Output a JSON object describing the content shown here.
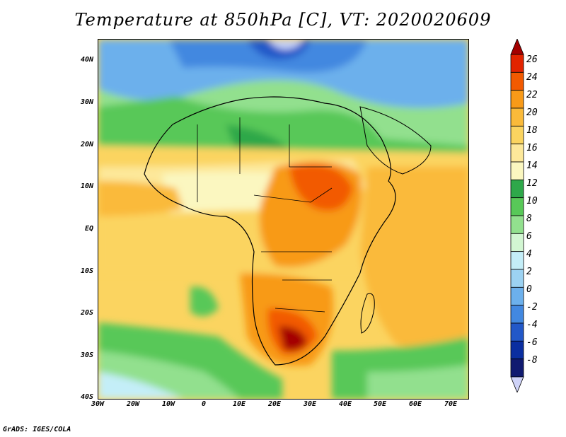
{
  "title": "Temperature at 850hPa [C], VT: 2020020609",
  "footer": "GrADS: IGES/COLA",
  "map": {
    "region": "Africa",
    "lat_labels": [
      "40N",
      "30N",
      "20N",
      "10N",
      "EQ",
      "10S",
      "20S",
      "30S",
      "40S"
    ],
    "lon_labels": [
      "30W",
      "20W",
      "10W",
      "0",
      "10E",
      "20E",
      "30E",
      "40E",
      "50E",
      "60E",
      "70E"
    ]
  },
  "colorbar": {
    "labels": [
      "26",
      "24",
      "22",
      "20",
      "18",
      "16",
      "14",
      "12",
      "10",
      "8",
      "6",
      "4",
      "2",
      "0",
      "-2",
      "-4",
      "-6",
      "-8"
    ],
    "colors": [
      "#a40000",
      "#e22400",
      "#f25a00",
      "#f89a18",
      "#faba3a",
      "#fbd460",
      "#fde89a",
      "#fbf7c0",
      "#2ea84a",
      "#58c858",
      "#92e08e",
      "#d2f6d2",
      "#c4eef8",
      "#9cd2f2",
      "#6cb0ec",
      "#4288e0",
      "#2258c8",
      "#0a2ea0",
      "#101a70",
      "#cfd3f8"
    ]
  }
}
